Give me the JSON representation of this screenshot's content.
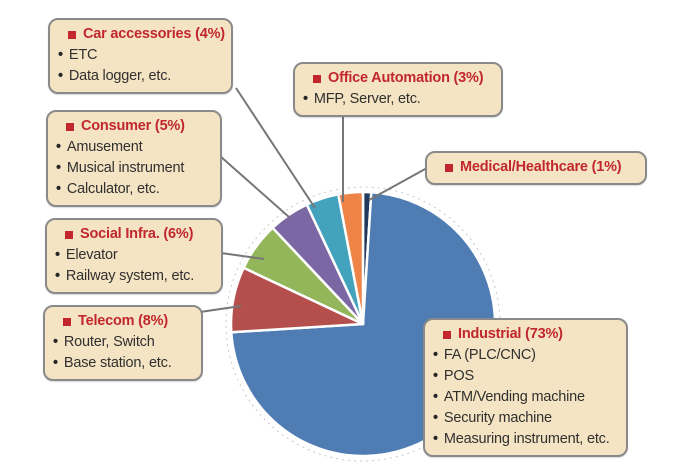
{
  "chart_data": {
    "type": "pie",
    "unit": "%",
    "legend_position": "callouts",
    "start_angle_deg": 0,
    "direction": "clockwise",
    "draw_order_from_top_clockwise": [
      3,
      6,
      5,
      4,
      2,
      0,
      1
    ],
    "slices": [
      {
        "label": "Car accessories",
        "pct": 4,
        "header": "Car accessories (4%)",
        "color": "#43A2BC",
        "items": [
          "ETC",
          "Data logger, etc."
        ]
      },
      {
        "label": "Office Automation",
        "pct": 3,
        "header": "Office Automation (3%)",
        "color": "#EF8449",
        "items": [
          "MFP, Server, etc."
        ]
      },
      {
        "label": "Consumer",
        "pct": 5,
        "header": "Consumer (5%)",
        "color": "#7A67A3",
        "items": [
          "Amusement",
          "Musical instrument",
          "Calculator, etc."
        ]
      },
      {
        "label": "Medical/Healthcare",
        "pct": 1,
        "header": "Medical/Healthcare (1%)",
        "color": "#1F3A5C",
        "items": []
      },
      {
        "label": "Social Infra.",
        "pct": 6,
        "header": "Social Infra. (6%)",
        "color": "#93B65A",
        "items": [
          "Elevator",
          "Railway system, etc."
        ]
      },
      {
        "label": "Telecom",
        "pct": 8,
        "header": "Telecom (8%)",
        "color": "#B44F4D",
        "items": [
          "Router, Switch",
          "Base station, etc."
        ]
      },
      {
        "label": "Industrial",
        "pct": 73,
        "header": "Industrial (73%)",
        "color": "#4E7CB3",
        "items": [
          "FA (PLC/CNC)",
          "POS",
          "ATM/Vending machine",
          "Security machine",
          "Measuring instrument, etc."
        ]
      }
    ],
    "colors": {
      "callout_background": "#F4E4C3",
      "callout_border": "#8A8A8A",
      "header_text": "#C1272D",
      "item_text": "#303030",
      "leader_line": "#767676",
      "slice_stroke": "#FFFFFF",
      "dashed_outline": "#C8C8C8"
    }
  }
}
